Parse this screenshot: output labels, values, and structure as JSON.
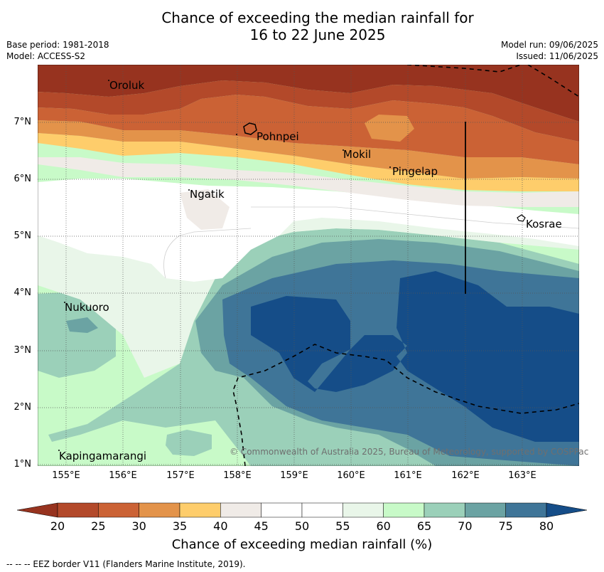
{
  "title_line1": "Chance of exceeding the median rainfall for",
  "title_line2": "16 to 22 June 2025",
  "info_left": {
    "base_period": "Base period: 1981-2018",
    "model": "Model: ACCESS-S2"
  },
  "info_right": {
    "model_run": "Model run: 09/06/2025",
    "issued": "Issued: 11/06/2025"
  },
  "map": {
    "lat_labels": [
      "7°N",
      "6°N",
      "5°N",
      "4°N",
      "3°N",
      "2°N",
      "1°N"
    ],
    "lon_labels": [
      "155°E",
      "156°E",
      "157°E",
      "158°E",
      "159°E",
      "160°E",
      "161°E",
      "162°E",
      "163°E"
    ],
    "places": [
      "Oroluk",
      "Pohnpei",
      "Mokil",
      "Pingelap",
      "Ngatik",
      "Kosrae",
      "Nukuoro",
      "Kapingamarangi"
    ],
    "credit": "© Commonwealth of Australia 2025, Bureau of Meteorology, supported by COSPPac"
  },
  "colorbar": {
    "ticks": [
      "20",
      "25",
      "30",
      "35",
      "40",
      "45",
      "50",
      "55",
      "60",
      "65",
      "70",
      "75",
      "80"
    ],
    "colors": [
      "#b3492a",
      "#cb6235",
      "#e3934a",
      "#fecd6b",
      "#f0ebe7",
      "#ffffff",
      "#ffffff",
      "#e9f6e9",
      "#c8fac8",
      "#9bd0b9",
      "#6ba3a3",
      "#3f7598"
    ],
    "under_color": "#97331f",
    "over_color": "#154d88",
    "label": "Chance of exceeding median rainfall (%)"
  },
  "footnote": "-- -- -- EEZ border V11 (Flanders Marine Institute, 2019)."
}
